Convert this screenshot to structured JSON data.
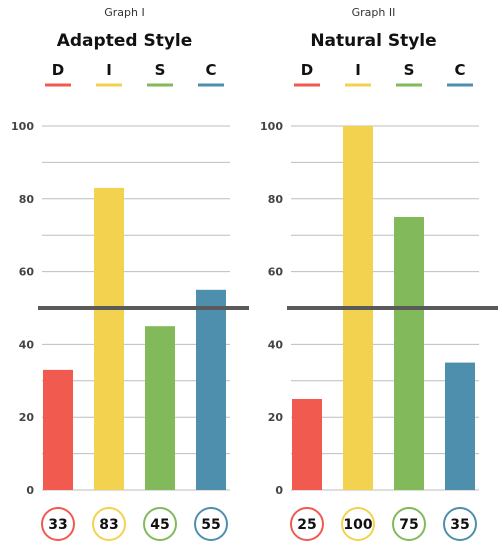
{
  "colors": {
    "D": "#f15a4f",
    "I": "#f2d24e",
    "S": "#82b95a",
    "C": "#4d8fad",
    "grid": "#bdbdbd",
    "midline": "#5a5a5a"
  },
  "chart_data": [
    {
      "type": "bar",
      "caption": "Graph I",
      "title": "Adapted Style",
      "categories": [
        "D",
        "I",
        "S",
        "C"
      ],
      "values": [
        33,
        83,
        45,
        55
      ],
      "ylim": [
        0,
        100
      ],
      "yticks": [
        0,
        20,
        40,
        60,
        80,
        100
      ],
      "grid": true,
      "reference_line": 50,
      "xlabel": "",
      "ylabel": ""
    },
    {
      "type": "bar",
      "caption": "Graph II",
      "title": "Natural Style",
      "categories": [
        "D",
        "I",
        "S",
        "C"
      ],
      "values": [
        25,
        100,
        75,
        35
      ],
      "ylim": [
        0,
        100
      ],
      "yticks": [
        0,
        20,
        40,
        60,
        80,
        100
      ],
      "grid": true,
      "reference_line": 50,
      "xlabel": "",
      "ylabel": ""
    }
  ]
}
